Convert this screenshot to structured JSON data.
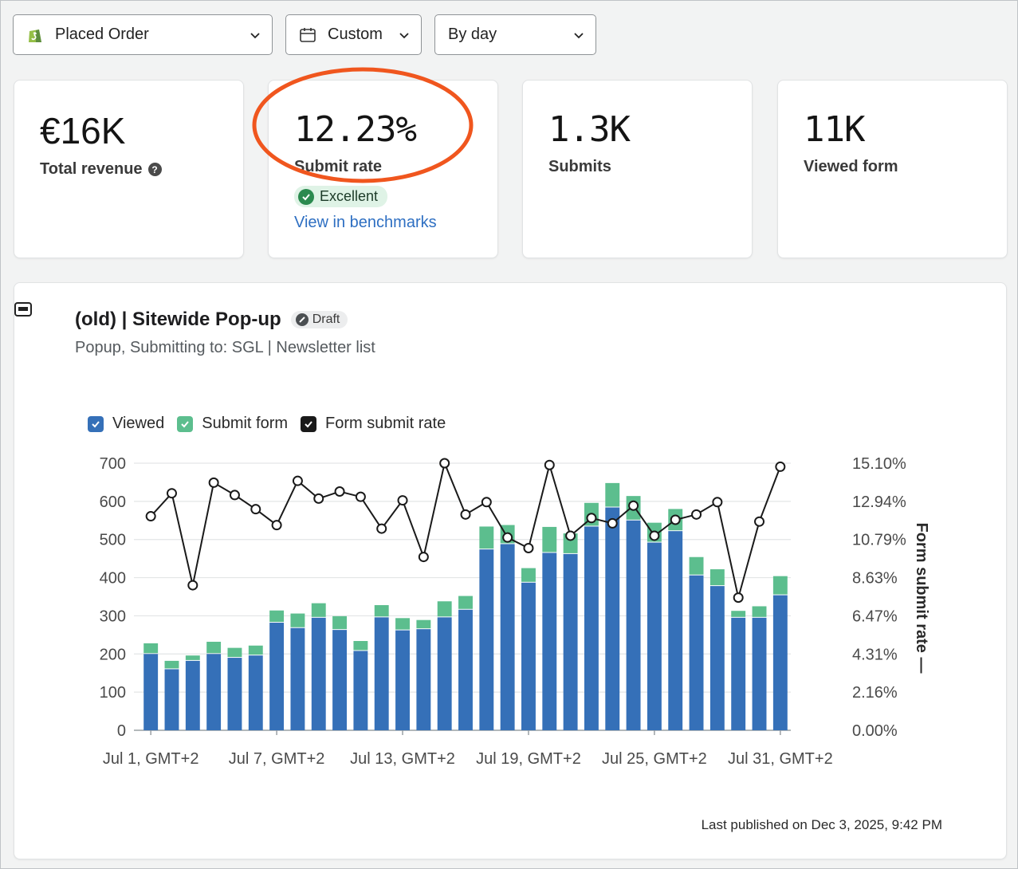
{
  "toolbar": {
    "metric_dropdown": "Placed Order",
    "date_dropdown": "Custom",
    "granularity_dropdown": "By day"
  },
  "stats": [
    {
      "value": "€16K",
      "label": "Total revenue"
    },
    {
      "value": "12.23%",
      "label": "Submit rate",
      "badge": "Excellent",
      "link": "View in benchmarks"
    },
    {
      "value": "1.3K",
      "label": "Submits"
    },
    {
      "value": "11K",
      "label": "Viewed form"
    }
  ],
  "form": {
    "title": "(old) | Sitewide Pop-up",
    "status": "Draft",
    "subtitle": "Popup, Submitting to: SGL | Newsletter list",
    "published": "Last published on Dec 3, 2025, 9:42 PM"
  },
  "colors": {
    "viewed": "#3570b8",
    "submit": "#5cbe8e",
    "rate": "#1a1a1a",
    "highlight": "#f0561e"
  },
  "chart_data": {
    "type": "bar",
    "legend": [
      "Viewed",
      "Submit form",
      "Form submit rate"
    ],
    "x_tick_labels": [
      "Jul 1, GMT+2",
      "Jul 7, GMT+2",
      "Jul 13, GMT+2",
      "Jul 19, GMT+2",
      "Jul 25, GMT+2",
      "Jul 31, GMT+2"
    ],
    "x_tick_days": [
      1,
      7,
      13,
      19,
      25,
      31
    ],
    "days": [
      1,
      2,
      3,
      4,
      5,
      6,
      7,
      8,
      9,
      10,
      11,
      12,
      13,
      14,
      15,
      16,
      17,
      18,
      19,
      20,
      21,
      22,
      23,
      24,
      25,
      26,
      27,
      28,
      29,
      30,
      31
    ],
    "y_left": {
      "ticks": [
        0,
        100,
        200,
        300,
        400,
        500,
        600,
        700
      ],
      "max": 700
    },
    "y_right": {
      "label": "Form submit rate",
      "tick_labels": [
        "0.00%",
        "2.16%",
        "4.31%",
        "6.47%",
        "8.63%",
        "10.79%",
        "12.94%",
        "15.10%"
      ],
      "max": 15.1
    },
    "series": [
      {
        "name": "Viewed",
        "values": [
          200,
          160,
          182,
          200,
          190,
          196,
          282,
          268,
          295,
          263,
          208,
          296,
          262,
          265,
          296,
          316,
          474,
          488,
          387,
          465,
          462,
          534,
          584,
          550,
          492,
          522,
          406,
          378,
          295,
          295,
          354
        ]
      },
      {
        "name": "Submit form",
        "values": [
          28,
          22,
          14,
          32,
          26,
          26,
          32,
          38,
          38,
          36,
          26,
          32,
          32,
          24,
          42,
          36,
          60,
          50,
          38,
          68,
          54,
          62,
          64,
          64,
          52,
          58,
          48,
          44,
          18,
          30,
          50
        ]
      },
      {
        "name": "Form submit rate",
        "values": [
          12.1,
          13.4,
          8.2,
          14.0,
          13.3,
          12.5,
          11.6,
          14.1,
          13.1,
          13.5,
          13.2,
          11.4,
          13.0,
          9.8,
          15.1,
          12.2,
          12.9,
          10.9,
          10.3,
          15.0,
          11.0,
          12.0,
          11.7,
          12.7,
          11.0,
          11.9,
          12.2,
          12.9,
          7.5,
          11.8,
          14.9
        ]
      }
    ]
  }
}
